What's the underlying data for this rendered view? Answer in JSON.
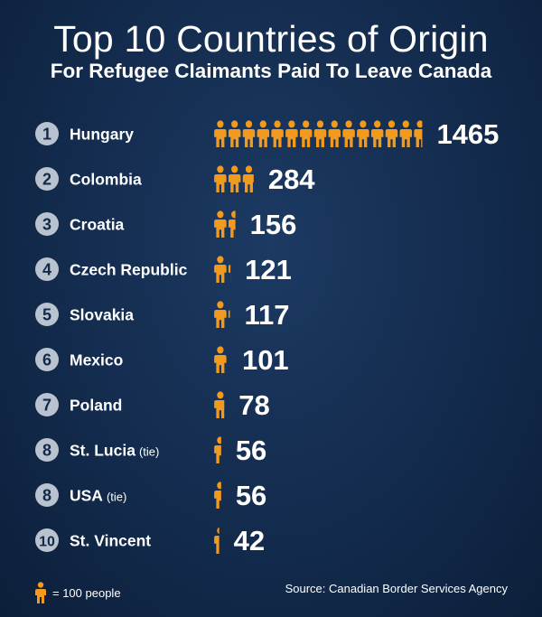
{
  "header": {
    "title": "Top 10 Countries of Origin",
    "subtitle": "For Refugee Claimants Paid To Leave Canada"
  },
  "colors": {
    "icon": "#f29a1e",
    "badge": "#b9c3cf",
    "badge_text": "#13294a"
  },
  "chart_data": {
    "type": "bar",
    "unit": "people",
    "icon_value": 100,
    "categories": [
      "Hungary",
      "Colombia",
      "Croatia",
      "Czech Republic",
      "Slovakia",
      "Mexico",
      "Poland",
      "St. Lucia",
      "USA",
      "St. Vincent"
    ],
    "ranks": [
      "1",
      "2",
      "3",
      "4",
      "5",
      "6",
      "7",
      "8",
      "8",
      "10"
    ],
    "notes": [
      "",
      "",
      "",
      "",
      "",
      "",
      "",
      "(tie)",
      "(tie)",
      ""
    ],
    "values": [
      1465,
      284,
      156,
      121,
      117,
      101,
      78,
      56,
      56,
      42
    ],
    "labels": [
      "1465",
      "284",
      "156",
      "121",
      "117",
      "101",
      "78",
      "56",
      "56",
      "42"
    ]
  },
  "legend": {
    "text": "= 100 people",
    "icon": "person-icon"
  },
  "source": "Source: Canadian Border Services Agency"
}
